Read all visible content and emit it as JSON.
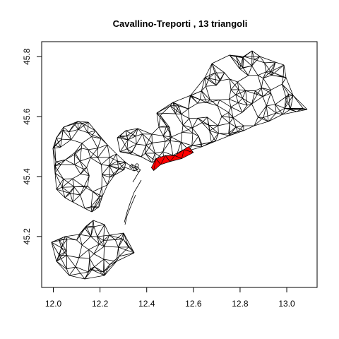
{
  "chart_data": {
    "type": "mesh",
    "title": "Cavallino-Treporti ,  13  triangoli",
    "xlabel": "",
    "ylabel": "",
    "xlim": [
      11.95,
      13.13
    ],
    "ylim": [
      45.03,
      45.85
    ],
    "x_ticks": [
      "12.0",
      "12.2",
      "12.4",
      "12.6",
      "12.8",
      "13.0"
    ],
    "y_ticks": [
      "45.2",
      "45.4",
      "45.6",
      "45.8"
    ],
    "grid": false,
    "legend": "none",
    "mesh_color": "#000000",
    "highlight_color": "#ff0000",
    "highlight_count": 13,
    "highlight_region": [
      [
        12.42,
        45.43
      ],
      [
        12.44,
        45.46
      ],
      [
        12.48,
        45.47
      ],
      [
        12.52,
        45.47
      ],
      [
        12.56,
        45.49
      ],
      [
        12.58,
        45.5
      ],
      [
        12.6,
        45.48
      ],
      [
        12.55,
        45.46
      ],
      [
        12.5,
        45.45
      ],
      [
        12.46,
        45.44
      ],
      [
        12.43,
        45.42
      ]
    ]
  }
}
